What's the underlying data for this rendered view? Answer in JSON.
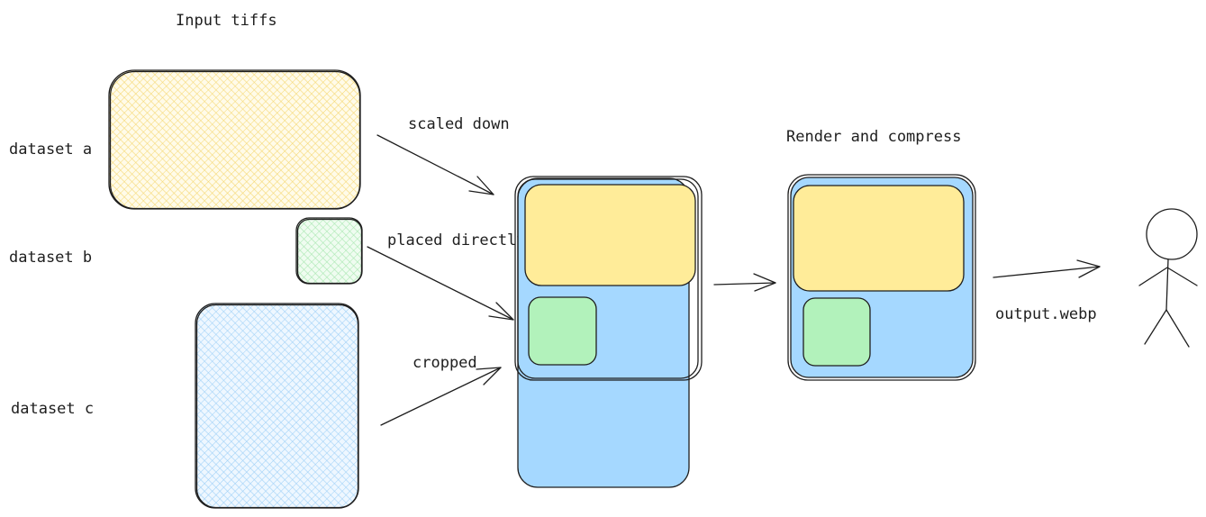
{
  "title": "Input tiffs",
  "datasets": [
    {
      "label": "dataset a",
      "color": "#fbe591",
      "hatch": "yellow"
    },
    {
      "label": "dataset b",
      "color": "#b2f2bb",
      "hatch": "green"
    },
    {
      "label": "dataset c",
      "color": "#a5d8ff",
      "hatch": "blue"
    }
  ],
  "transforms": [
    "scaled down",
    "placed directly",
    "cropped"
  ],
  "stage_label": "Render and compress",
  "output_label": "output.webp",
  "colors": {
    "stroke": "#1e1e1e",
    "yellow": "#ffec99",
    "green": "#b2f2bb",
    "blue": "#a5d8ff"
  },
  "icons": [
    "arrow-icon",
    "stick-figure-user-icon"
  ]
}
